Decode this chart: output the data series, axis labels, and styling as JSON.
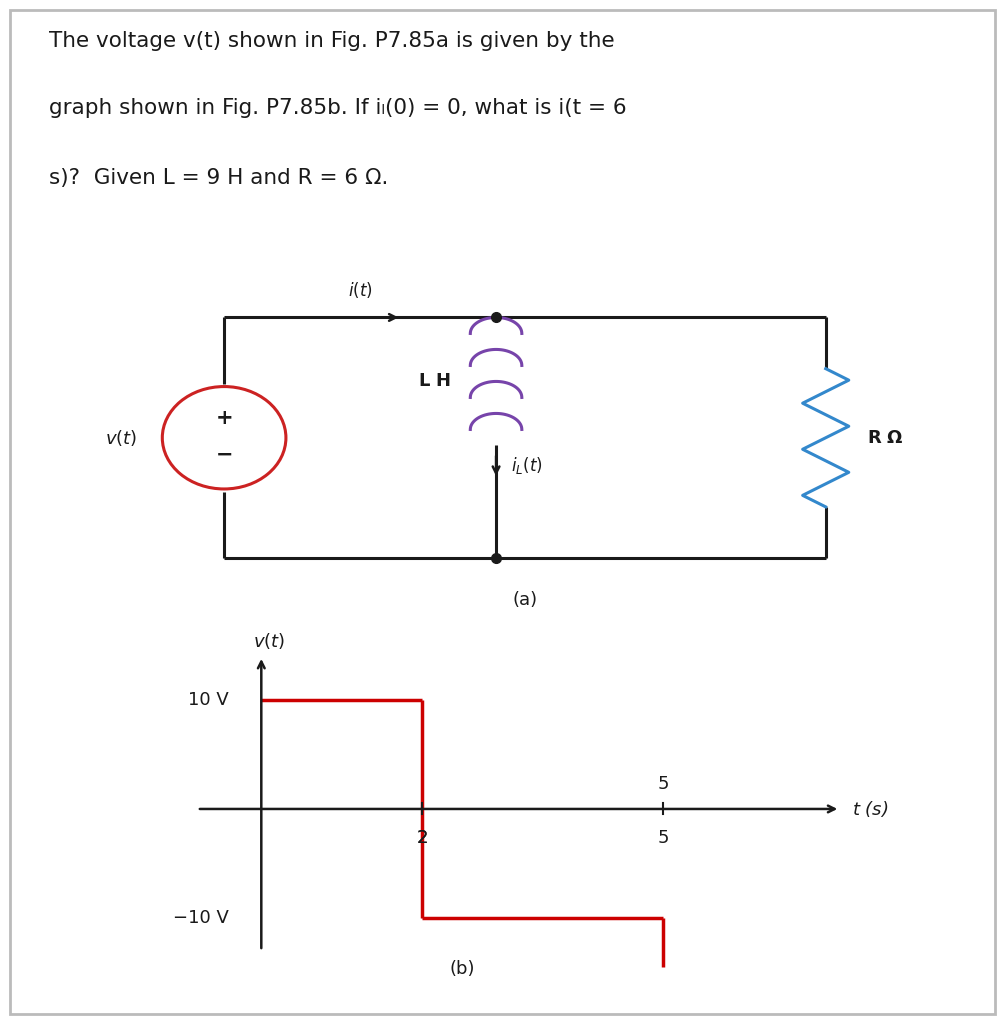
{
  "title_lines": [
    "The voltage v(t) shown in Fig. P7.85a is given by the",
    "graph shown in Fig. P7.85b. If iₗ(0) = 0, what is i(t = 6",
    "s)?  Given L = 9 H and R = 6 Ω."
  ],
  "circuit_label_a": "(a)",
  "graph_label_b": "(b)",
  "graph_xlabel": "t (s)",
  "graph_ylabel": "v(t)",
  "waveform_color": "#cc0000",
  "inductor_color": "#7744aa",
  "resistor_color": "#3388cc",
  "source_circle_color": "#cc2222",
  "line_color": "#1a1a1a",
  "text_color": "#1a1a1a",
  "fig_width": 10.05,
  "fig_height": 10.24,
  "background_color": "#ffffff",
  "border_color": "#bbbbbb"
}
